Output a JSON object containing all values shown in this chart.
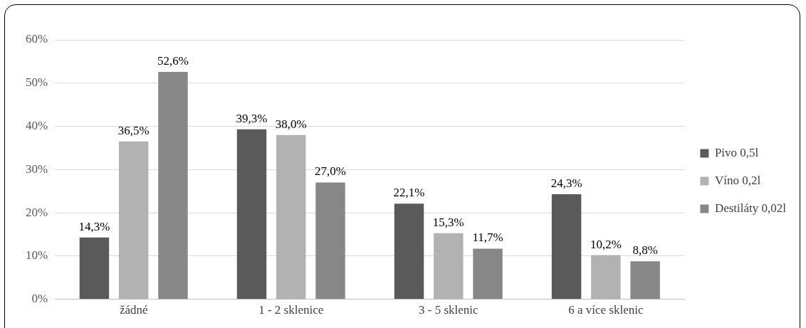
{
  "chart_data": {
    "type": "bar",
    "categories": [
      "žádné",
      "1 - 2 sklenice",
      "3 - 5 sklenic",
      "6 a více sklenic"
    ],
    "series": [
      {
        "name": "Pivo 0,5l",
        "color": "#5a5a5a",
        "values": [
          14.3,
          39.3,
          22.1,
          24.3
        ],
        "value_labels": [
          "14,3%",
          "39,3%",
          "22,1%",
          "24,3%"
        ]
      },
      {
        "name": "Víno 0,2l",
        "color": "#b2b2b2",
        "values": [
          36.5,
          38.0,
          15.3,
          10.2
        ],
        "value_labels": [
          "36,5%",
          "38,0%",
          "15,3%",
          "10,2%"
        ]
      },
      {
        "name": "Destiláty 0,02l",
        "color": "#878787",
        "values": [
          52.6,
          27.0,
          11.7,
          8.8
        ],
        "value_labels": [
          "52,6%",
          "27,0%",
          "11,7%",
          "8,8%"
        ]
      }
    ],
    "ylim": [
      0,
      60
    ],
    "yticks": [
      {
        "value": 0,
        "label": "0%"
      },
      {
        "value": 10,
        "label": "10%"
      },
      {
        "value": 20,
        "label": "20%"
      },
      {
        "value": 30,
        "label": "30%"
      },
      {
        "value": 40,
        "label": "40%"
      },
      {
        "value": 50,
        "label": "50%"
      },
      {
        "value": 60,
        "label": "60%"
      }
    ],
    "grid": "y",
    "legend": "right"
  }
}
